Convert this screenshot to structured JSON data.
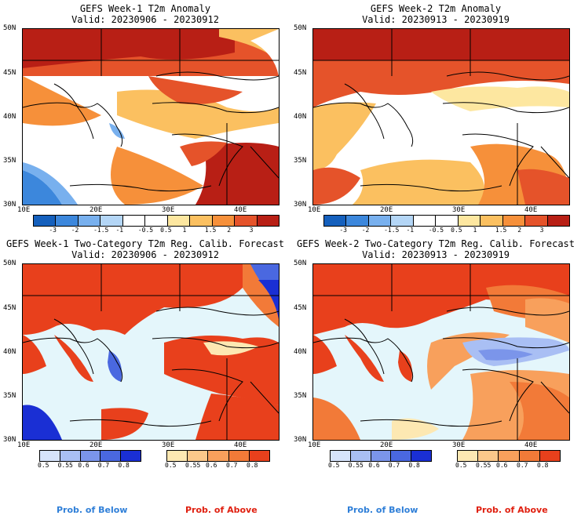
{
  "panels": [
    {
      "title_line1": "GEFS Week-1 T2m Anomaly",
      "title_line2": "Valid: 20230906 - 20230912",
      "lat_labels": [
        "50N",
        "45N",
        "40N",
        "35N",
        "30N"
      ],
      "lon_labels": [
        "10E",
        "20E",
        "30E",
        "40E"
      ],
      "colorbar_labels": [
        "-3",
        "-2",
        "-1.5",
        "-1",
        "-0.5",
        "0.5",
        "1",
        "1.5",
        "2",
        "3"
      ]
    },
    {
      "title_line1": "GEFS Week-2 T2m Anomaly",
      "title_line2": "Valid: 20230913 - 20230919",
      "lat_labels": [
        "50N",
        "45N",
        "40N",
        "35N",
        "30N"
      ],
      "lon_labels": [
        "10E",
        "20E",
        "30E",
        "40E"
      ],
      "colorbar_labels": [
        "-3",
        "-2",
        "-1.5",
        "-1",
        "-0.5",
        "0.5",
        "1",
        "1.5",
        "2",
        "3"
      ]
    },
    {
      "title_line1": "GEFS Week-1 Two-Category T2m Reg. Calib. Forecast",
      "title_line2": "Valid: 20230906 - 20230912",
      "lat_labels": [
        "50N",
        "45N",
        "40N",
        "35N",
        "30N"
      ],
      "lon_labels": [
        "10E",
        "20E",
        "30E",
        "40E"
      ],
      "below_labels": [
        "0.5",
        "0.55",
        "0.6",
        "0.7",
        "0.8"
      ],
      "above_labels": [
        "0.5",
        "0.55",
        "0.6",
        "0.7",
        "0.8"
      ]
    },
    {
      "title_line1": "GEFS Week-2 Two-Category T2m Reg. Calib. Forecast",
      "title_line2": "Valid: 20230913 - 20230919",
      "lat_labels": [
        "50N",
        "45N",
        "40N",
        "35N",
        "30N"
      ],
      "lon_labels": [
        "10E",
        "20E",
        "30E",
        "40E"
      ],
      "below_labels": [
        "0.5",
        "0.55",
        "0.6",
        "0.7",
        "0.8"
      ],
      "above_labels": [
        "0.5",
        "0.55",
        "0.6",
        "0.7",
        "0.8"
      ]
    }
  ],
  "legend": {
    "below": "Prob. of Below",
    "above": "Prob. of Above"
  },
  "colors": {
    "anomaly_scale": [
      "#1560bd",
      "#3c87dc",
      "#78b0ee",
      "#b4d6f6",
      "#ffffff",
      "#ffffff",
      "#fde7a0",
      "#fbc060",
      "#f6903a",
      "#e5532a",
      "#b81f15"
    ],
    "below_scale": [
      "#d6e4fb",
      "#a9bff4",
      "#7b95ea",
      "#4a68e0",
      "#1a2fd4"
    ],
    "above_scale": [
      "#fde8b2",
      "#fbc88a",
      "#f8a05c",
      "#f27a38",
      "#e8401c"
    ],
    "below_label": "#2f7fd8",
    "above_label": "#e02010",
    "sea_prob": "#e4f6fb"
  }
}
